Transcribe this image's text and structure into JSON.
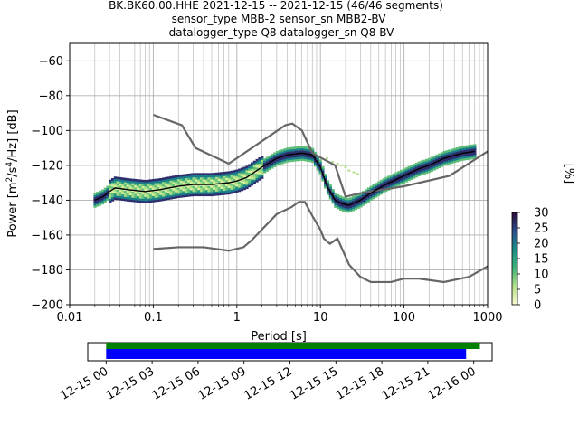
{
  "chart_data": [
    {
      "type": "heatmap",
      "title_lines": [
        "BK.BK60.00.HHE   2021-12-15 -- 2021-12-15  (46/46 segments)",
        "sensor_type MBB-2 sensor_sn MBB2-BV",
        "datalogger_type Q8 datalogger_sn Q8-BV"
      ],
      "xlabel": "Period [s]",
      "ylabel_parts": [
        "Power [m",
        "2",
        "/s",
        "4",
        "/Hz] [dB]"
      ],
      "xscale": "log",
      "xlim": [
        0.01,
        1000
      ],
      "ylim": [
        -200,
        -50
      ],
      "x_ticks": [
        0.01,
        0.1,
        1,
        10,
        100,
        1000
      ],
      "x_tick_labels": [
        "0.01",
        "0.1",
        "1",
        "10",
        "100",
        "1000"
      ],
      "y_ticks": [
        -200,
        -180,
        -160,
        -140,
        -120,
        -100,
        -80,
        -60
      ],
      "y_tick_labels": [
        "−200",
        "−180",
        "−160",
        "−140",
        "−120",
        "−100",
        "−80",
        "−60"
      ],
      "grid": true,
      "colorbar": {
        "label": "[%]",
        "range": [
          0,
          30
        ],
        "ticks": [
          0,
          5,
          10,
          15,
          20,
          25,
          30
        ],
        "tick_labels": [
          "0",
          "5",
          "10",
          "15",
          "20",
          "25",
          "30"
        ]
      },
      "mean_curve": [
        [
          0.02,
          -140
        ],
        [
          0.025,
          -138
        ],
        [
          0.03,
          -135
        ],
        [
          0.035,
          -133
        ],
        [
          0.05,
          -134
        ],
        [
          0.08,
          -135
        ],
        [
          0.12,
          -134
        ],
        [
          0.2,
          -132
        ],
        [
          0.3,
          -131
        ],
        [
          0.5,
          -131
        ],
        [
          0.8,
          -130
        ],
        [
          1.0,
          -129
        ],
        [
          1.3,
          -127
        ],
        [
          2.0,
          -121
        ],
        [
          3.0,
          -116
        ],
        [
          4.0,
          -114
        ],
        [
          6.0,
          -113
        ],
        [
          8.0,
          -114
        ],
        [
          10.0,
          -121
        ],
        [
          12.0,
          -132
        ],
        [
          15.0,
          -140
        ],
        [
          18.0,
          -142
        ],
        [
          22.0,
          -143
        ],
        [
          30.0,
          -140
        ],
        [
          40.0,
          -136
        ],
        [
          60.0,
          -131
        ],
        [
          100.0,
          -126
        ],
        [
          150.0,
          -122
        ],
        [
          200.0,
          -120
        ],
        [
          300.0,
          -116
        ],
        [
          500.0,
          -113
        ],
        [
          700.0,
          -112
        ]
      ],
      "upper_curve": [
        [
          0.1,
          -91
        ],
        [
          0.22,
          -97
        ],
        [
          0.32,
          -110
        ],
        [
          0.8,
          -119
        ],
        [
          3.8,
          -97
        ],
        [
          4.6,
          -96
        ],
        [
          6.0,
          -100
        ],
        [
          8.0,
          -113
        ],
        [
          15.0,
          -120
        ],
        [
          20.0,
          -138
        ],
        [
          30.0,
          -136
        ],
        [
          100.0,
          -132
        ],
        [
          350.0,
          -126
        ],
        [
          1000.0,
          -112
        ]
      ],
      "lower_curve": [
        [
          0.1,
          -168
        ],
        [
          0.2,
          -167
        ],
        [
          0.4,
          -167
        ],
        [
          0.8,
          -169
        ],
        [
          1.2,
          -167
        ],
        [
          1.5,
          -163
        ],
        [
          3.0,
          -148
        ],
        [
          4.5,
          -144
        ],
        [
          5.5,
          -141
        ],
        [
          6.5,
          -141
        ],
        [
          8.0,
          -149
        ],
        [
          10.0,
          -157
        ],
        [
          11.0,
          -162
        ],
        [
          13.0,
          -165
        ],
        [
          16.0,
          -162
        ],
        [
          22.0,
          -177
        ],
        [
          30.0,
          -184
        ],
        [
          40.0,
          -187
        ],
        [
          70.0,
          -187
        ],
        [
          100.0,
          -185
        ],
        [
          150.0,
          -185
        ],
        [
          300.0,
          -187
        ],
        [
          600.0,
          -184
        ],
        [
          1000.0,
          -178
        ]
      ]
    },
    {
      "type": "timeline",
      "x_tick_labels": [
        "12-15 00",
        "12-15 03",
        "12-15 06",
        "12-15 09",
        "12-15 12",
        "12-15 15",
        "12-15 18",
        "12-15 21",
        "12-16 00"
      ],
      "x_ticks_hours": [
        0,
        3,
        6,
        9,
        12,
        15,
        18,
        21,
        24
      ],
      "xlim_hours": [
        -1.2,
        25.2
      ],
      "bars": [
        {
          "color": "#008000",
          "start_hour": 0,
          "end_hour": 24.4
        },
        {
          "color": "#0000ff",
          "start_hour": 0,
          "end_hour": 23.5
        }
      ]
    }
  ]
}
